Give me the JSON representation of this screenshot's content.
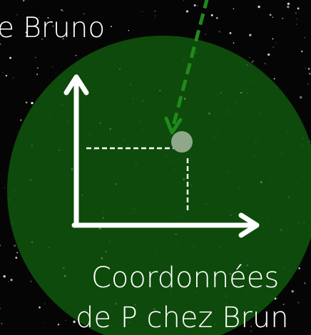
{
  "labels": {
    "top": "e Bruno",
    "caption_line1": "Coordonnées",
    "caption_line2": "de P chez Brun"
  }
}
